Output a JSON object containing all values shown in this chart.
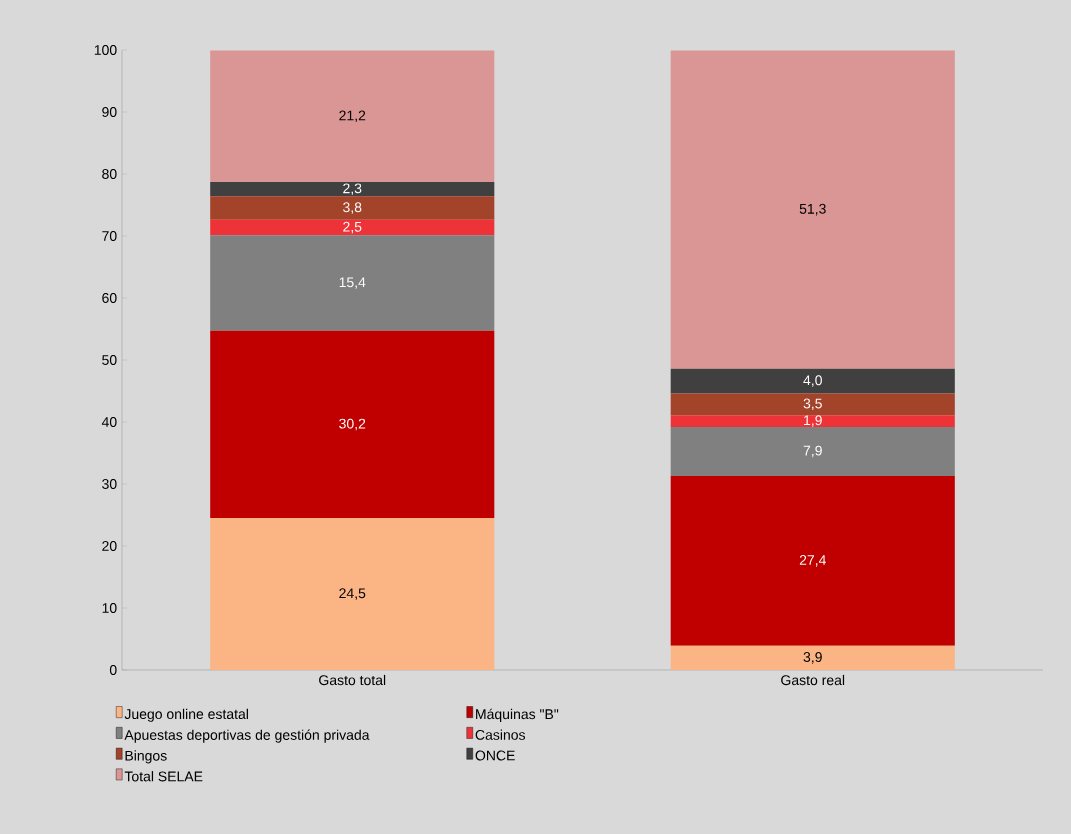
{
  "chart_data": {
    "type": "bar",
    "stacked": true,
    "categories": [
      "Gasto total",
      "Gasto real"
    ],
    "series": [
      {
        "name": "Juego online estatal",
        "color": "#fbb584",
        "values": [
          24.5,
          3.9
        ],
        "value_labels": [
          "24,5",
          "3,9"
        ]
      },
      {
        "name": "Máquinas \"B\"",
        "color": "#c00000",
        "values": [
          30.2,
          27.4
        ],
        "value_labels": [
          "30,2",
          "27,4"
        ]
      },
      {
        "name": "Apuestas deportivas de gestión privada",
        "color": "#808080",
        "values": [
          15.4,
          7.9
        ],
        "value_labels": [
          "15,4",
          "7,9"
        ]
      },
      {
        "name": "Casinos",
        "color": "#ee3338",
        "values": [
          2.5,
          1.9
        ],
        "value_labels": [
          "2,5",
          "1,9"
        ]
      },
      {
        "name": "Bingos",
        "color": "#a3432a",
        "values": [
          3.8,
          3.5
        ],
        "value_labels": [
          "3,8",
          "3,5"
        ]
      },
      {
        "name": "ONCE",
        "color": "#404040",
        "values": [
          2.3,
          4.0
        ],
        "value_labels": [
          "2,3",
          "4,0"
        ]
      },
      {
        "name": "Total SELAE",
        "color": "#da9694",
        "values": [
          21.2,
          51.3
        ],
        "value_labels": [
          "21,2",
          "51,3"
        ]
      }
    ],
    "ylim": [
      0,
      100
    ],
    "yticks": [
      0,
      10,
      20,
      30,
      40,
      50,
      60,
      70,
      80,
      90,
      100
    ],
    "grid": false,
    "legend": "bottom"
  }
}
